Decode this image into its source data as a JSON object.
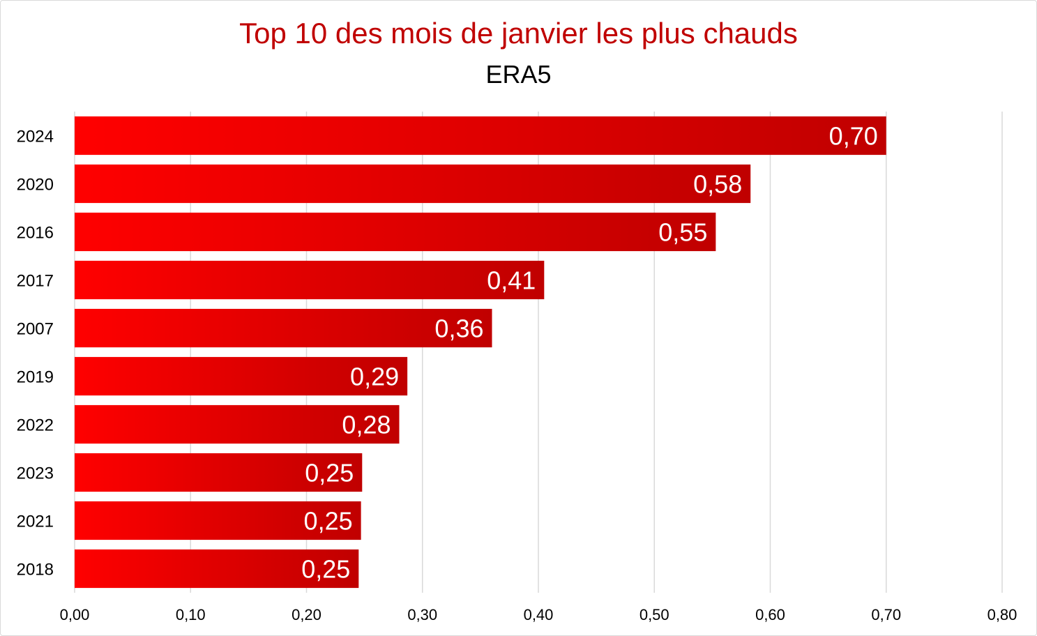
{
  "chart_data": {
    "type": "bar",
    "orientation": "horizontal",
    "title": "Top 10 des mois de janvier les plus chauds",
    "subtitle": "ERA5",
    "categories": [
      "2024",
      "2020",
      "2016",
      "2017",
      "2007",
      "2019",
      "2022",
      "2023",
      "2021",
      "2018"
    ],
    "values": [
      0.7,
      0.583,
      0.553,
      0.405,
      0.36,
      0.287,
      0.28,
      0.248,
      0.247,
      0.245
    ],
    "data_labels": [
      "0,70",
      "0,58",
      "0,55",
      "0,41",
      "0,36",
      "0,29",
      "0,28",
      "0,25",
      "0,25",
      "0,25"
    ],
    "xlim": [
      0,
      0.8
    ],
    "x_ticks": [
      0,
      0.1,
      0.2,
      0.3,
      0.4,
      0.5,
      0.6,
      0.7,
      0.8
    ],
    "x_tick_labels": [
      "0,00",
      "0,10",
      "0,20",
      "0,30",
      "0,40",
      "0,50",
      "0,60",
      "0,70",
      "0,80"
    ],
    "grid": "vertical",
    "legend": "none",
    "bar_color_start": "#ff0000",
    "bar_color_end": "#c00000"
  },
  "colors": {
    "title": "#c00000",
    "gridline": "#d9d9d9"
  }
}
